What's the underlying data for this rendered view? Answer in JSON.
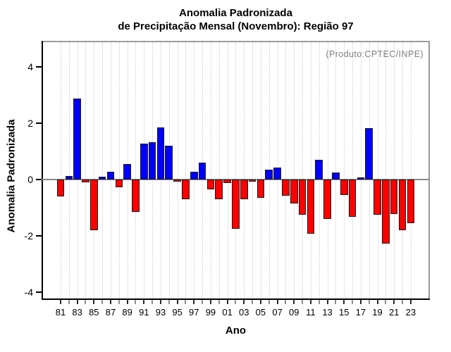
{
  "title": {
    "line1": "Anomalia Padronizada",
    "line2": "de Precipitação Mensal (Novembro): Região 97"
  },
  "annotation": "(Produto:CPTEC/INPE)",
  "axes": {
    "y_label": "Anomalia Padronizada",
    "x_label": "Ano",
    "y_ticks": [
      4,
      2,
      0,
      -2,
      -4
    ],
    "x_tick_labels": [
      "81",
      "83",
      "85",
      "87",
      "89",
      "91",
      "93",
      "95",
      "97",
      "99",
      "01",
      "03",
      "05",
      "07",
      "09",
      "11",
      "13",
      "15",
      "17",
      "19",
      "21",
      "23"
    ]
  },
  "colors": {
    "positive": "#0000FF",
    "negative": "#FF0000",
    "bar_outline": "#1a1a1a",
    "zero_line": "#8a8a8a",
    "frame_gray": "#9c9c9c",
    "grid": "#cdcdcd",
    "annotation_gray": "#7f7f7f"
  },
  "chart_data": {
    "type": "bar",
    "title": "Anomalia Padronizada de Precipitação Mensal (Novembro): Região 97",
    "xlabel": "Ano",
    "ylabel": "Anomalia Padronizada",
    "ylim": [
      -4.3,
      4.9
    ],
    "grid": "vertical-dotted-per-year",
    "color_rule": "positive bars blue, negative bars red",
    "categories": [
      1981,
      1982,
      1983,
      1984,
      1985,
      1986,
      1987,
      1988,
      1989,
      1990,
      1991,
      1992,
      1993,
      1994,
      1995,
      1996,
      1997,
      1998,
      1999,
      2000,
      2001,
      2002,
      2003,
      2004,
      2005,
      2006,
      2007,
      2008,
      2009,
      2010,
      2011,
      2012,
      2013,
      2014,
      2015,
      2016,
      2017,
      2018,
      2019,
      2020,
      2021,
      2022,
      2023
    ],
    "values": [
      -0.61,
      0.13,
      2.88,
      -0.11,
      -1.81,
      0.11,
      0.27,
      -0.27,
      0.55,
      -1.16,
      1.28,
      1.32,
      1.85,
      1.21,
      -0.07,
      -0.7,
      0.28,
      0.6,
      -0.35,
      -0.71,
      -0.13,
      -1.76,
      -0.71,
      -0.08,
      -0.65,
      0.35,
      0.42,
      -0.57,
      -0.84,
      -1.24,
      -1.93,
      0.7,
      -1.39,
      0.24,
      -0.55,
      -1.32,
      0.08,
      1.82,
      -1.24,
      -2.27,
      -1.22,
      -1.79,
      -1.54
    ]
  }
}
